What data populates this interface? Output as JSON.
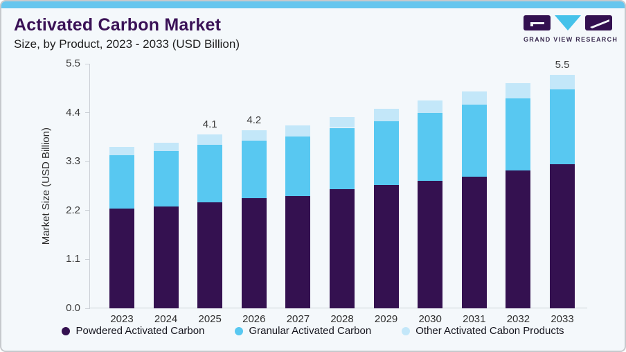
{
  "card": {
    "title": "Activated Carbon Market",
    "subtitle": "Size, by Product, 2023 - 2033 (USD Billion)",
    "logo": {
      "text": "GRAND VIEW RESEARCH"
    }
  },
  "chart_data": {
    "type": "bar",
    "stacked": true,
    "title": "Activated Carbon Market",
    "subtitle": "Size, by Product, 2023 - 2033 (USD Billion)",
    "ylabel": "Market Size (USD Billion)",
    "xlabel": "",
    "ylim": [
      0,
      5.5
    ],
    "yticks": [
      "0.0",
      "1.1",
      "2.2",
      "3.3",
      "4.4",
      "5.5"
    ],
    "grid": false,
    "legend_position": "bottom",
    "categories": [
      "2023",
      "2024",
      "2025",
      "2026",
      "2027",
      "2028",
      "2029",
      "2030",
      "2031",
      "2032",
      "2033"
    ],
    "series": [
      {
        "name": "Powdered Activated Carbon",
        "color": "#341150",
        "values": [
          2.35,
          2.4,
          2.5,
          2.6,
          2.65,
          2.8,
          2.9,
          3.0,
          3.1,
          3.25,
          3.4
        ]
      },
      {
        "name": "Granular Activated Carbon",
        "color": "#58c8f1",
        "values": [
          1.25,
          1.3,
          1.35,
          1.35,
          1.4,
          1.45,
          1.5,
          1.6,
          1.7,
          1.7,
          1.75
        ]
      },
      {
        "name": "Other Activated Cabon Products",
        "color": "#c3e7f9",
        "values": [
          0.2,
          0.2,
          0.25,
          0.25,
          0.25,
          0.25,
          0.3,
          0.3,
          0.3,
          0.35,
          0.35
        ]
      }
    ],
    "totals": [
      3.8,
      3.9,
      4.1,
      4.2,
      4.3,
      4.5,
      4.7,
      4.9,
      5.1,
      5.3,
      5.5
    ],
    "totals_shown": [
      {
        "year": "2025",
        "label": "4.1"
      },
      {
        "year": "2026",
        "label": "4.2"
      },
      {
        "year": "2033",
        "label": "5.5"
      }
    ]
  },
  "colors": {
    "card_background": "#f4f8fb",
    "top_strip": "#66c6ee",
    "card_border": "#c6c9cd",
    "title_text": "#3a1156",
    "axis_line": "#cbd0d6",
    "powdered": "#341150",
    "granular": "#58c8f1",
    "other": "#c3e7f9"
  }
}
